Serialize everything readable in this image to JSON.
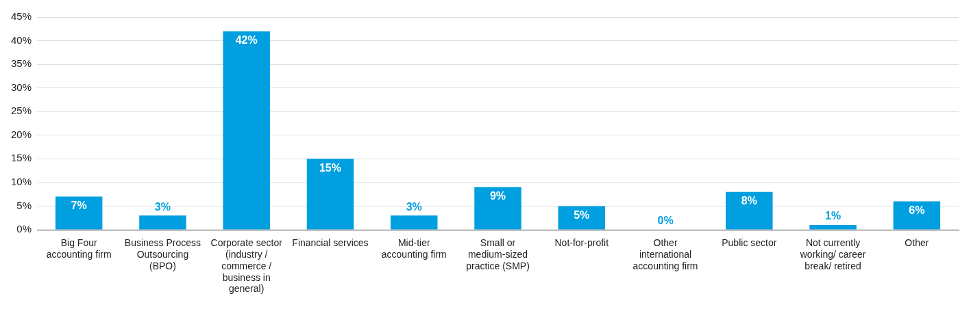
{
  "chart_data": {
    "type": "bar",
    "categories": [
      "Big Four accounting firm",
      "Business Process Outsourcing (BPO)",
      "Corporate sector (industry / commerce / business in general)",
      "Financial services",
      "Mid-tier accounting firm",
      "Small or medium-sized practice (SMP)",
      "Not-for-profit",
      "Other international accounting firm",
      "Public sector",
      "Not currently working/ career break/ retired",
      "Other"
    ],
    "values": [
      7,
      3,
      42,
      15,
      3,
      9,
      5,
      0,
      8,
      1,
      6
    ],
    "value_labels": [
      "7%",
      "3%",
      "42%",
      "15%",
      "3%",
      "9%",
      "5%",
      "0%",
      "8%",
      "1%",
      "6%"
    ],
    "color": "#009fe0",
    "ylim": [
      0,
      45
    ],
    "yticks": [
      {
        "value": 0,
        "label": "0%"
      },
      {
        "value": 5,
        "label": "5%"
      },
      {
        "value": 10,
        "label": "10%"
      },
      {
        "value": 15,
        "label": "15%"
      },
      {
        "value": 20,
        "label": "20%"
      },
      {
        "value": 25,
        "label": "25%"
      },
      {
        "value": 30,
        "label": "30%"
      },
      {
        "value": 35,
        "label": "35%"
      },
      {
        "value": 40,
        "label": "40%"
      },
      {
        "value": 45,
        "label": "45%"
      }
    ],
    "grid": "y",
    "legend": false
  }
}
